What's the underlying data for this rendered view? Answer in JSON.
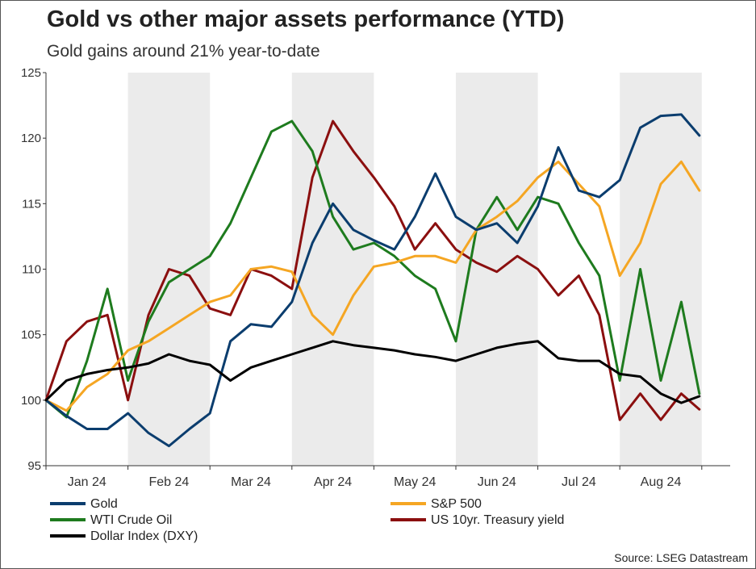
{
  "title": "Gold vs other major assets performance (YTD)",
  "subtitle": "Gold gains around 21% year-to-date",
  "source": "Source: LSEG Datastream",
  "chart_data": {
    "type": "line",
    "title": "Gold vs other major assets performance (YTD)",
    "subtitle": "Gold gains around 21% year-to-date",
    "x_unit": "month index (0 = start of Jan 2024)",
    "xlim": [
      0,
      7.97
    ],
    "ylim": [
      95,
      125
    ],
    "yticks": [
      95,
      100,
      105,
      110,
      115,
      120,
      125
    ],
    "ytick_labels": [
      "95",
      "100",
      "105",
      "110",
      "115",
      "120",
      "125"
    ],
    "xtick_labels": [
      "Jan 24",
      "Feb 24",
      "Mar 24",
      "Apr 24",
      "May 24",
      "Jun 24",
      "Jul 24",
      "Aug 24"
    ],
    "shaded_months": [
      1,
      3,
      5,
      7
    ],
    "legend_position": "bottom",
    "series": [
      {
        "name": "Gold",
        "color": "#0b3d6e",
        "x": [
          0,
          0.25,
          0.5,
          0.75,
          1.0,
          1.25,
          1.5,
          1.75,
          2.0,
          2.25,
          2.5,
          2.75,
          3.0,
          3.25,
          3.5,
          3.75,
          4.0,
          4.25,
          4.5,
          4.75,
          5.0,
          5.25,
          5.5,
          5.75,
          6.0,
          6.25,
          6.5,
          6.75,
          7.0,
          7.25,
          7.5,
          7.75,
          7.97
        ],
        "values": [
          100,
          98.8,
          97.8,
          97.8,
          99.0,
          97.5,
          96.5,
          97.8,
          99.0,
          104.5,
          105.8,
          105.6,
          107.5,
          112.0,
          115.0,
          113.0,
          112.2,
          111.5,
          114.0,
          117.3,
          114.0,
          113.0,
          113.5,
          112.0,
          114.8,
          119.3,
          116.0,
          115.5,
          116.8,
          120.8,
          121.7,
          121.8,
          120.2
        ]
      },
      {
        "name": "S&P 500",
        "color": "#f5a623",
        "x": [
          0,
          0.25,
          0.5,
          0.75,
          1.0,
          1.25,
          1.5,
          1.75,
          2.0,
          2.25,
          2.5,
          2.75,
          3.0,
          3.25,
          3.5,
          3.75,
          4.0,
          4.25,
          4.5,
          4.75,
          5.0,
          5.25,
          5.5,
          5.75,
          6.0,
          6.25,
          6.5,
          6.75,
          7.0,
          7.25,
          7.5,
          7.75,
          7.97
        ],
        "values": [
          100,
          99.2,
          101.0,
          102.0,
          103.8,
          104.5,
          105.5,
          106.5,
          107.5,
          108.0,
          110.0,
          110.2,
          109.8,
          106.5,
          105.0,
          108.0,
          110.2,
          110.5,
          111.0,
          111.0,
          110.5,
          113.0,
          114.0,
          115.2,
          117.0,
          118.2,
          116.5,
          114.8,
          109.5,
          112.0,
          116.5,
          118.2,
          116.0
        ]
      },
      {
        "name": "WTI Crude Oil",
        "color": "#1e7b1e",
        "x": [
          0,
          0.25,
          0.5,
          0.75,
          1.0,
          1.25,
          1.5,
          1.75,
          2.0,
          2.25,
          2.5,
          2.75,
          3.0,
          3.25,
          3.5,
          3.75,
          4.0,
          4.25,
          4.5,
          4.75,
          5.0,
          5.25,
          5.5,
          5.75,
          6.0,
          6.25,
          6.5,
          6.75,
          7.0,
          7.25,
          7.5,
          7.75,
          7.97
        ],
        "values": [
          100,
          98.7,
          103.0,
          108.5,
          101.5,
          106.0,
          109.0,
          110.0,
          111.0,
          113.5,
          117.0,
          120.5,
          121.3,
          119.0,
          114.0,
          111.5,
          112.0,
          111.0,
          109.5,
          108.5,
          104.5,
          113.0,
          115.5,
          113.0,
          115.5,
          115.0,
          112.0,
          109.5,
          101.5,
          110.0,
          101.5,
          107.5,
          100.5
        ]
      },
      {
        "name": "US 10yr. Treasury yield",
        "color": "#8b0f0f",
        "x": [
          0,
          0.25,
          0.5,
          0.75,
          1.0,
          1.25,
          1.5,
          1.75,
          2.0,
          2.25,
          2.5,
          2.75,
          3.0,
          3.25,
          3.5,
          3.75,
          4.0,
          4.25,
          4.5,
          4.75,
          5.0,
          5.25,
          5.5,
          5.75,
          6.0,
          6.25,
          6.5,
          6.75,
          7.0,
          7.25,
          7.5,
          7.75,
          7.97
        ],
        "values": [
          100,
          104.5,
          106.0,
          106.5,
          100.0,
          106.5,
          110.0,
          109.5,
          107.0,
          106.5,
          110.0,
          109.5,
          108.5,
          117.0,
          121.3,
          119.0,
          117.0,
          114.8,
          111.5,
          113.5,
          111.5,
          110.5,
          109.8,
          111.0,
          110.0,
          108.0,
          109.5,
          106.5,
          98.5,
          100.5,
          98.5,
          100.5,
          99.3
        ]
      },
      {
        "name": "Dollar Index (DXY)",
        "color": "#000000",
        "x": [
          0,
          0.25,
          0.5,
          0.75,
          1.0,
          1.25,
          1.5,
          1.75,
          2.0,
          2.25,
          2.5,
          2.75,
          3.0,
          3.25,
          3.5,
          3.75,
          4.0,
          4.25,
          4.5,
          4.75,
          5.0,
          5.25,
          5.5,
          5.75,
          6.0,
          6.25,
          6.5,
          6.75,
          7.0,
          7.25,
          7.5,
          7.75,
          7.97
        ],
        "values": [
          100,
          101.5,
          102.0,
          102.3,
          102.5,
          102.8,
          103.5,
          103.0,
          102.7,
          101.5,
          102.5,
          103.0,
          103.5,
          104.0,
          104.5,
          104.2,
          104.0,
          103.8,
          103.5,
          103.3,
          103.0,
          103.5,
          104.0,
          104.3,
          104.5,
          103.2,
          103.0,
          103.0,
          102.0,
          101.8,
          100.5,
          99.8,
          100.3
        ]
      }
    ]
  }
}
